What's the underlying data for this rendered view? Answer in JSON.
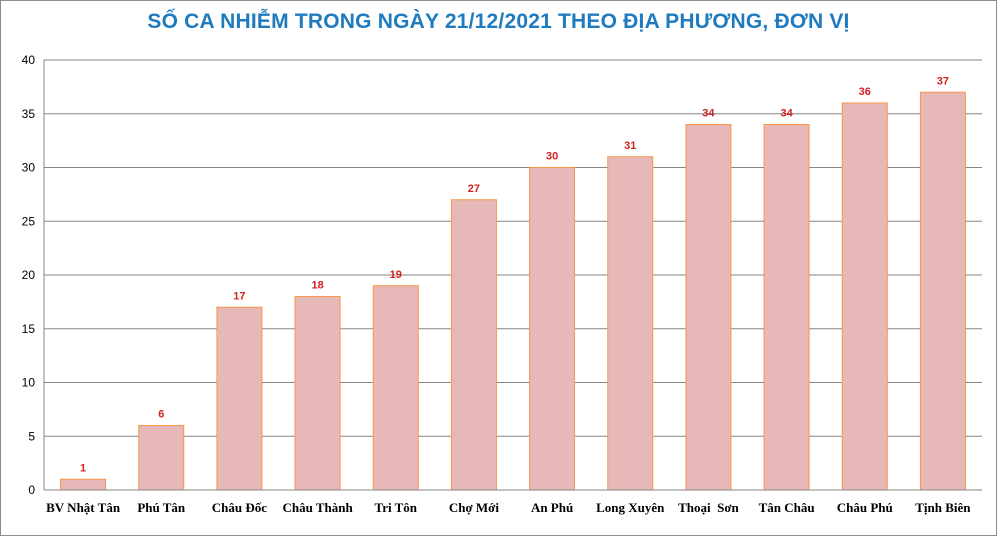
{
  "chart_data": {
    "type": "bar",
    "title": "SỐ CA NHIỄM TRONG NGÀY 21/12/2021 THEO ĐỊA PHƯƠNG, ĐƠN VỊ",
    "categories": [
      "BV Nhật Tân",
      "Phú Tân",
      "Châu Đốc",
      "Châu Thành",
      "Tri Tôn",
      "Chợ Mới",
      "An Phú",
      "Long Xuyên",
      "Thoại  Sơn",
      "Tân Châu",
      "Châu Phú",
      "Tịnh Biên"
    ],
    "values": [
      1,
      6,
      17,
      18,
      19,
      27,
      30,
      31,
      34,
      34,
      36,
      37
    ],
    "data_labels": [
      "1",
      "6",
      "17",
      "18",
      "19",
      "27",
      "30",
      "31",
      "34",
      "34",
      "36",
      "37"
    ],
    "yticks": [
      "0",
      "5",
      "10",
      "15",
      "20",
      "25",
      "30",
      "35",
      "40"
    ],
    "ylim": [
      0,
      40
    ],
    "grid": true,
    "bar_color": "#e6b8b7",
    "bar_edge_color": "#f79646",
    "label_color": "#d42020",
    "title_color": "#1f7bbf"
  }
}
